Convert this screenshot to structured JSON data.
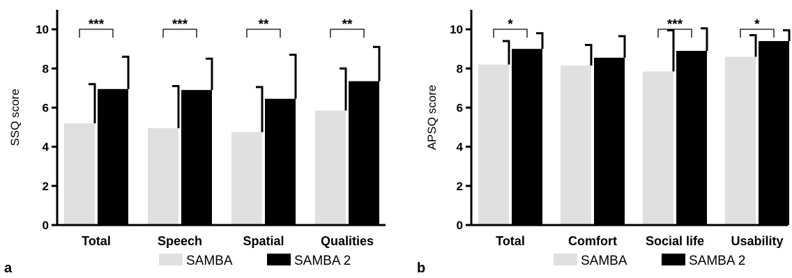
{
  "chart_data": [
    {
      "type": "bar",
      "panel_label": "a",
      "ylabel": "SSQ score",
      "ylim": [
        0,
        11
      ],
      "yticks": [
        0,
        2,
        4,
        6,
        8,
        10
      ],
      "categories": [
        "Total",
        "Speech",
        "Spatial",
        "Qualities"
      ],
      "series": [
        {
          "name": "SAMBA",
          "color": "#e0e0e0",
          "values": [
            5.2,
            4.95,
            4.75,
            5.85
          ],
          "errors": [
            2.0,
            2.15,
            2.3,
            2.15
          ]
        },
        {
          "name": "SAMBA 2",
          "color": "#000000",
          "values": [
            6.95,
            6.9,
            6.45,
            7.35
          ],
          "errors": [
            1.65,
            1.6,
            2.25,
            1.75
          ]
        }
      ],
      "significance": [
        "***",
        "***",
        "**",
        "**"
      ],
      "legend_position": "bottom"
    },
    {
      "type": "bar",
      "panel_label": "b",
      "ylabel": "APSQ score",
      "ylim": [
        0,
        11
      ],
      "yticks": [
        0,
        2,
        4,
        6,
        8,
        10
      ],
      "categories": [
        "Total",
        "Comfort",
        "Social life",
        "Usability"
      ],
      "series": [
        {
          "name": "SAMBA",
          "color": "#e0e0e0",
          "values": [
            8.2,
            8.15,
            7.85,
            8.6
          ],
          "errors": [
            1.2,
            1.05,
            2.1,
            1.1
          ]
        },
        {
          "name": "SAMBA 2",
          "color": "#000000",
          "values": [
            9.0,
            8.55,
            8.9,
            9.4
          ],
          "errors": [
            0.8,
            1.1,
            1.15,
            0.55
          ]
        }
      ],
      "significance": [
        "*",
        "",
        "***",
        "*"
      ],
      "legend_position": "bottom"
    }
  ]
}
